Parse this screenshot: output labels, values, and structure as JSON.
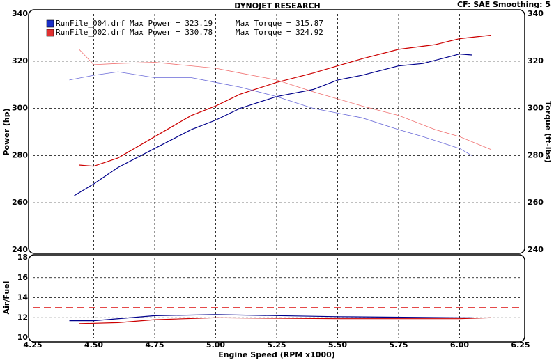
{
  "chart_data": {
    "type": "line",
    "title": "DYNOJET RESEARCH",
    "subtitle": "CF: SAE  Smoothing: 5",
    "x_label": "Engine Speed (RPM x1000)",
    "xlim": [
      4.25,
      6.25
    ],
    "xticks": [
      4.25,
      {
        "value": 4.5,
        "label": "4.50"
      },
      4.75,
      {
        "value": 5,
        "label": "5.00"
      },
      5.25,
      {
        "value": 5.5,
        "label": "5.50"
      },
      5.75,
      {
        "value": 6,
        "label": "6.00"
      },
      6.25
    ],
    "grid": true,
    "panels": [
      {
        "y_label": "Power (hp)",
        "y2_label": "Torque (ft-lbs)",
        "ylim": [
          240,
          340
        ],
        "yticks": [
          240,
          260,
          280,
          300,
          320,
          340
        ],
        "y2lim": [
          240,
          340
        ],
        "y2ticks": [
          240,
          260,
          280,
          300,
          320,
          340
        ],
        "legend": [
          {
            "text": "RunFile_004.drf Max Power = 323.19",
            "torque": "Max Torque = 315.87",
            "color": "#1a2fc8"
          },
          {
            "text": "RunFile_002.drf Max Power = 330.78",
            "torque": "Max Torque = 324.92",
            "color": "#e03030"
          }
        ],
        "series": [
          {
            "color": "#00008b",
            "width": 1.2,
            "x": [
              4.42,
              4.5,
              4.6,
              4.75,
              4.9,
              5.0,
              5.1,
              5.25,
              5.4,
              5.5,
              5.6,
              5.75,
              5.85,
              6.0,
              6.05
            ],
            "values": [
              263,
              268,
              275,
              283,
              291,
              295,
              300,
              305,
              308,
              312,
              314,
              318,
              319,
              323,
              322.6
            ]
          },
          {
            "color": "#cc0000",
            "width": 1.2,
            "x": [
              4.44,
              4.5,
              4.6,
              4.75,
              4.9,
              5.0,
              5.1,
              5.25,
              5.4,
              5.5,
              5.6,
              5.75,
              5.9,
              6.0,
              6.13
            ],
            "values": [
              276,
              275.5,
              279,
              288,
              297,
              301,
              306,
              311,
              315,
              318,
              321,
              325,
              327,
              329.5,
              331
            ]
          },
          {
            "color": "#6a6ad8",
            "width": 0.8,
            "axis": "y2",
            "x": [
              4.4,
              4.5,
              4.6,
              4.75,
              4.9,
              5.0,
              5.1,
              5.25,
              5.4,
              5.5,
              5.6,
              5.75,
              5.85,
              6.0,
              6.05
            ],
            "values": [
              312,
              314,
              315.5,
              313,
              313,
              311,
              309,
              305,
              300,
              298,
              296,
              291,
              288,
              283,
              280
            ]
          },
          {
            "color": "#f07070",
            "width": 0.8,
            "axis": "y2",
            "x": [
              4.44,
              4.5,
              4.6,
              4.75,
              4.9,
              5.0,
              5.1,
              5.25,
              5.4,
              5.5,
              5.6,
              5.75,
              5.9,
              6.0,
              6.13
            ],
            "values": [
              325,
              318.5,
              319,
              319.5,
              318,
              317,
              315,
              312,
              307,
              304,
              301,
              297,
              291,
              288,
              282.5
            ]
          }
        ]
      },
      {
        "y_label": "Air/Fuel",
        "ylim": [
          10,
          18
        ],
        "yticks": [
          10,
          12,
          14,
          16,
          18
        ],
        "ref_lines": [
          {
            "value": 13,
            "color": "#e03030"
          }
        ],
        "series": [
          {
            "color": "#00008b",
            "width": 1.2,
            "x": [
              4.4,
              4.5,
              4.75,
              5.0,
              5.5,
              6.0,
              6.05
            ],
            "values": [
              11.7,
              11.7,
              12.2,
              12.3,
              12.1,
              12.0,
              12.0
            ]
          },
          {
            "color": "#cc0000",
            "width": 1.2,
            "x": [
              4.44,
              4.6,
              4.75,
              5.0,
              5.5,
              6.0,
              6.13
            ],
            "values": [
              11.4,
              11.5,
              11.8,
              12.0,
              11.9,
              11.9,
              12.0
            ]
          }
        ]
      }
    ]
  }
}
